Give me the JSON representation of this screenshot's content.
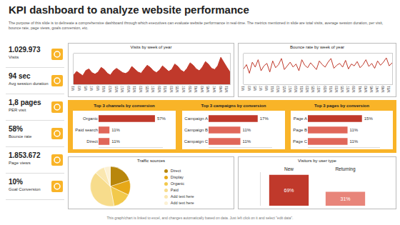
{
  "title": "KPI dashboard to analyze website performance",
  "description": "The purpose of this slide is to delineate a comprehensive dashboard through which executives can evaluate website performance in real-time. The metrics mentioned in slide are total visits, average session duration, per visit, bounce rate, page views, goals conversion, etc.",
  "kpis": [
    {
      "value": "1.029.973",
      "label": "Visits"
    },
    {
      "value": "94 sec",
      "label": "Avg session duration"
    },
    {
      "value": "1,8 pages",
      "label": "PER visit"
    },
    {
      "value": "58%",
      "label": "Bounce rate"
    },
    {
      "value": "1.853.672",
      "label": "Page views"
    },
    {
      "value": "10%",
      "label": "Goal Conversion"
    }
  ],
  "chart_data": [
    {
      "type": "area",
      "title": "Visits by week of year",
      "categories": [
        "W1",
        null,
        "W3",
        null,
        "W5",
        null,
        "W7",
        null,
        "W9",
        null,
        "W11",
        null,
        "W13",
        null,
        "W15",
        null,
        "W17",
        null,
        "W19",
        null,
        "W21",
        null,
        "W23",
        null,
        "W25",
        null,
        "W27",
        null,
        "W29",
        null,
        "W31",
        null,
        "W33",
        null,
        "W35",
        null,
        "W37",
        null,
        "W39",
        null,
        "W41",
        null,
        "W43",
        null,
        "W45",
        null,
        "W47",
        null,
        "W49",
        null,
        "W51",
        null
      ],
      "values": [
        30,
        42,
        35,
        28,
        45,
        50,
        38,
        33,
        40,
        55,
        48,
        36,
        30,
        44,
        52,
        46,
        38,
        35,
        42,
        58,
        50,
        40,
        36,
        48,
        62,
        55,
        44,
        38,
        46,
        60,
        52,
        42,
        48,
        66,
        58,
        46,
        40,
        52,
        70,
        62,
        50,
        44,
        56,
        74,
        65,
        52,
        48,
        60,
        88,
        70,
        55,
        40
      ],
      "color": "#c0392b",
      "ylim": [
        0,
        100
      ],
      "tick_labels": "x"
    },
    {
      "type": "line",
      "title": "Bounce rate by week of year",
      "categories": [
        "W1",
        null,
        "W3",
        null,
        "W5",
        null,
        "W7",
        null,
        "W9",
        null,
        "W11",
        null,
        "W13",
        null,
        "W15",
        null,
        "W17",
        null,
        "W19",
        null,
        "W21",
        null,
        "W23",
        null,
        "W25",
        null,
        "W27",
        null,
        "W29",
        null,
        "W31",
        null,
        "W33",
        null,
        "W35",
        null,
        "W37",
        null,
        "W39",
        null,
        "W41",
        null,
        "W43",
        null,
        "W45",
        null,
        "W47",
        null,
        "W49",
        null,
        "W51",
        null
      ],
      "values": [
        55,
        62,
        48,
        66,
        58,
        70,
        52,
        60,
        64,
        50,
        68,
        57,
        62,
        72,
        54,
        60,
        66,
        58,
        63,
        52,
        70,
        61,
        57,
        65,
        60,
        54,
        68,
        62,
        58,
        66,
        72,
        56,
        61,
        64,
        58,
        69,
        55,
        63,
        60,
        67,
        57,
        62,
        70,
        59,
        64,
        56,
        68,
        61,
        66,
        73,
        60,
        65
      ],
      "color": "#c0392b",
      "ylim": [
        30,
        80
      ],
      "tick_labels": "x"
    },
    {
      "type": "bar",
      "orientation": "horizontal",
      "title": "Top 3 channels by conversion",
      "categories": [
        "Organic",
        "Paid search",
        "Direct"
      ],
      "values": [
        57,
        11,
        11
      ],
      "value_labels": [
        "57%",
        "11%",
        "11%"
      ],
      "data_labels": true,
      "colors": [
        "#c0392b",
        "#e0675a",
        "#e0675a"
      ],
      "xlim": [
        0,
        65
      ],
      "tick_labels": "y"
    },
    {
      "type": "bar",
      "orientation": "horizontal",
      "title": "Top 3 campaigns by conversion",
      "categories": [
        "Campaign A",
        "Campaign B",
        "Campaign C"
      ],
      "values": [
        17,
        11,
        11
      ],
      "value_labels": [
        "17%",
        "11%",
        "11%"
      ],
      "data_labels": true,
      "colors": [
        "#c0392b",
        "#e0675a",
        "#e0675a"
      ],
      "xlim": [
        0,
        22
      ],
      "tick_labels": "y"
    },
    {
      "type": "bar",
      "orientation": "horizontal",
      "title": "Top 3 pages by conversion",
      "categories": [
        "Page A",
        "Page B",
        "Page C"
      ],
      "values": [
        15,
        11,
        11
      ],
      "value_labels": [
        "15%",
        "11%",
        "11%"
      ],
      "data_labels": true,
      "colors": [
        "#c0392b",
        "#e0675a",
        "#e0675a"
      ],
      "xlim": [
        0,
        20
      ],
      "tick_labels": "y"
    },
    {
      "type": "pie",
      "title": "Traffic sources",
      "categories": [
        "Direct",
        "Display",
        "Organic",
        "Paid",
        "Add text here",
        "Add text here"
      ],
      "values": [
        20,
        12,
        15,
        40,
        8,
        5
      ],
      "colors": [
        "#b8860b",
        "#e6a817",
        "#f2c94c",
        "#f7dc8c",
        "#fae7b0",
        "#fcf1d4"
      ],
      "legend": "right"
    },
    {
      "type": "bar",
      "title": "Visitors by user type",
      "categories": [
        "New",
        "Returning"
      ],
      "values": [
        69,
        31
      ],
      "value_labels": [
        "69%",
        "31%"
      ],
      "data_labels": true,
      "colors": [
        "#c0392b",
        "#e8857a"
      ],
      "ylim": [
        0,
        75
      ],
      "tick_labels": "x"
    }
  ],
  "footer": "This graph/chart is linked to excel, and changes automatically based on data. Just left click on it and select \"edit data\"."
}
